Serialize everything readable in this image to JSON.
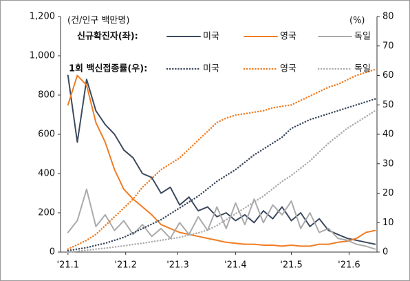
{
  "chart_data": {
    "type": "line",
    "annotations": [
      "(건/인구 백만명)",
      "(%)"
    ],
    "legend_labels": [
      "신규확진자(좌):",
      "1회 백신접종률(우):"
    ],
    "x": [
      0,
      5,
      10,
      15,
      20,
      25,
      30,
      35,
      40,
      45,
      50,
      55,
      60,
      65,
      70,
      75,
      80,
      85,
      90,
      95,
      100,
      105,
      110,
      115,
      120,
      125,
      130,
      135,
      140,
      145,
      150,
      155,
      160,
      165
    ],
    "xlim": [
      -4,
      166
    ],
    "xticks": [
      {
        "value": 0,
        "label": "'21.1"
      },
      {
        "value": 31,
        "label": "'21.2"
      },
      {
        "value": 59,
        "label": "'21.3"
      },
      {
        "value": 90,
        "label": "'21.4"
      },
      {
        "value": 120,
        "label": "'21.5"
      },
      {
        "value": 151,
        "label": "'21.6"
      }
    ],
    "ylim": [
      0,
      1200
    ],
    "yticks": [
      0,
      200,
      400,
      600,
      800,
      {
        "value": 1000,
        "label": "1,000"
      },
      {
        "value": 1200,
        "label": "1,200"
      }
    ],
    "y2lim": [
      0,
      80
    ],
    "y2ticks": [
      0,
      10,
      20,
      30,
      40,
      50,
      60,
      70,
      80
    ],
    "series": [
      {
        "name": "미국",
        "color": "#3d4a5e",
        "style": "solid",
        "values": [
          900,
          560,
          880,
          720,
          650,
          600,
          520,
          480,
          400,
          380,
          300,
          330,
          240,
          280,
          210,
          230,
          180,
          200,
          160,
          190,
          150,
          210,
          170,
          230,
          160,
          200,
          130,
          170,
          110,
          90,
          70,
          60,
          50,
          40
        ]
      },
      {
        "name": "영국",
        "color": "#f07c22",
        "style": "solid",
        "values": [
          750,
          900,
          850,
          660,
          560,
          420,
          320,
          270,
          230,
          190,
          140,
          120,
          100,
          90,
          80,
          70,
          60,
          50,
          45,
          40,
          40,
          35,
          35,
          30,
          35,
          30,
          30,
          40,
          40,
          50,
          55,
          70,
          100,
          110
        ]
      },
      {
        "name": "독일",
        "color": "#aaaaaa",
        "style": "solid",
        "values": [
          100,
          160,
          320,
          130,
          190,
          110,
          160,
          90,
          140,
          80,
          120,
          70,
          150,
          90,
          180,
          110,
          230,
          120,
          250,
          140,
          270,
          150,
          240,
          190,
          260,
          120,
          200,
          100,
          120,
          70,
          60,
          40,
          30,
          15
        ]
      },
      {
        "name": "미국",
        "color": "#3d4a5e",
        "style": "dotted",
        "axis": "y2",
        "values": [
          0.5,
          1,
          1.5,
          2.3,
          3,
          4,
          5,
          6.5,
          8,
          9.5,
          11,
          13,
          15,
          17,
          19,
          21.5,
          24,
          26,
          28,
          30.5,
          33,
          35,
          37,
          39,
          42,
          43.5,
          45,
          46,
          47,
          48,
          49,
          50,
          51,
          52
        ]
      },
      {
        "name": "영국",
        "color": "#f07c22",
        "style": "dotted",
        "axis": "y2",
        "values": [
          1,
          2.5,
          4,
          6,
          9,
          12,
          15,
          18,
          22,
          25,
          28,
          30,
          32,
          35,
          38,
          41,
          44,
          45.5,
          46.5,
          47,
          47.5,
          48,
          49,
          49.5,
          50,
          51.5,
          53,
          54.5,
          56,
          57,
          58.5,
          60,
          61,
          62
        ]
      },
      {
        "name": "독일",
        "color": "#aaaaaa",
        "style": "dotted",
        "axis": "y2",
        "values": [
          0,
          0.3,
          0.6,
          1,
          1.3,
          1.7,
          2.1,
          2.6,
          3,
          3.5,
          4,
          4.5,
          5,
          5.8,
          6.5,
          7.5,
          9,
          11,
          13,
          15,
          17,
          19,
          21.5,
          24,
          26,
          28.5,
          31,
          34,
          37,
          39.5,
          42,
          44,
          46,
          48
        ]
      }
    ]
  }
}
